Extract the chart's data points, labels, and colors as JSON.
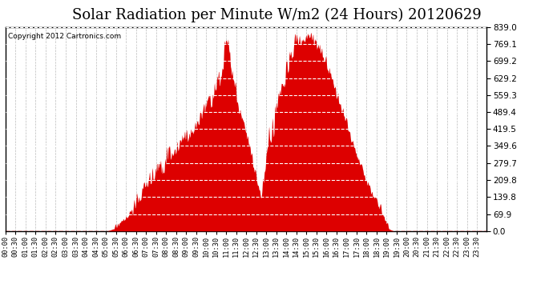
{
  "title": "Solar Radiation per Minute W/m2 (24 Hours) 20120629",
  "copyright_text": "Copyright 2012 Cartronics.com",
  "title_fontsize": 13,
  "background_color": "#ffffff",
  "plot_background": "#ffffff",
  "fill_color": "#dd0000",
  "dashed_line_color": "#ff0000",
  "ytick_labels": [
    "0.0",
    "69.9",
    "139.8",
    "209.8",
    "279.7",
    "349.6",
    "419.5",
    "489.4",
    "559.3",
    "629.2",
    "699.2",
    "769.1",
    "839.0"
  ],
  "ytick_values": [
    0.0,
    69.9,
    139.8,
    209.8,
    279.7,
    349.6,
    419.5,
    489.4,
    559.3,
    629.2,
    699.2,
    769.1,
    839.0
  ],
  "ymax": 839.0,
  "num_points": 1440,
  "xtick_step": 30
}
